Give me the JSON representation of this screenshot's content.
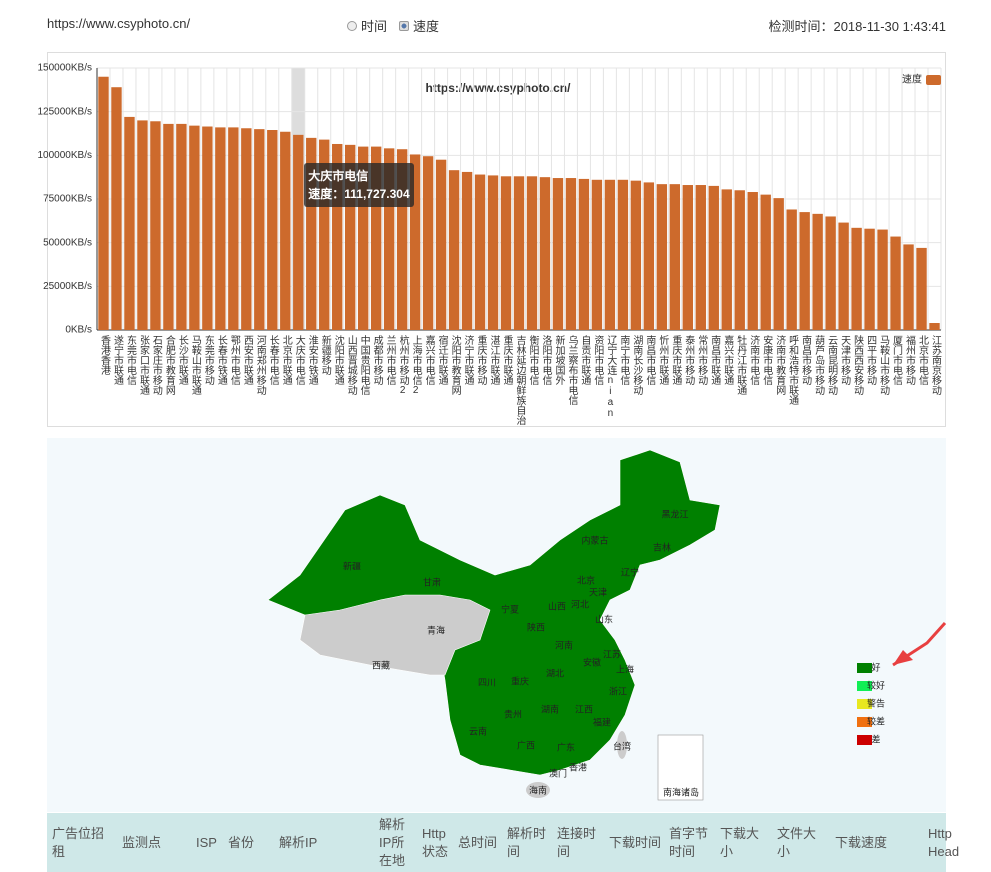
{
  "header": {
    "url": "https://www.csyphoto.cn/",
    "radio_options": [
      "时间",
      "速度"
    ],
    "radio_selected": 1,
    "check_time": "检测时间：2018-11-30 1:43:41"
  },
  "chart_data": {
    "type": "bar",
    "title": "https://www.csyphoto.cn/",
    "categories": [
      "香港香港",
      "遂宁市联通",
      "东莞市电信",
      "张家口市联通",
      "石家庄市移动",
      "合肥市教育网",
      "长沙市联通",
      "马鞍山市联通",
      "东莞市移动",
      "长春市铁通",
      "鄂州市电信",
      "西安市联通",
      "河南郑州移动",
      "长春市电信",
      "北京市联通",
      "大庆市电信",
      "淮安市铁通",
      "新疆移动",
      "沈阳市联通",
      "山西晋城移动",
      "中国贵阳电信",
      "成都市移动",
      "兰州市电信",
      "杭州市移动2",
      "上海市电信2",
      "嘉兴市电信",
      "宿迁市联通",
      "沈阳市教育网",
      "济宁市联通",
      "重庆市移动",
      "湛江市联通",
      "重庆市联通",
      "吉林延边朝鲜族自治",
      "衡阳市电信",
      "洛阳市电信",
      "新加坡国外",
      "乌兰察布市电信",
      "自贡市联通",
      "资阳市电信",
      "辽宁大连nian",
      "南宁市电信",
      "湖南长沙移动",
      "南昌市电信",
      "忻州市联通",
      "重庆市联通",
      "泰州市移动",
      "常州市移动",
      "南昌市联通",
      "嘉兴市联通",
      "牡丹江市联通",
      "济南市电信",
      "安康市电信",
      "济南市教育网",
      "呼和浩特市联通",
      "南昌市移动",
      "葫芦岛市移动",
      "云南昆明移动",
      "天津市移动",
      "陕西西安移动",
      "四平市移动",
      "马鞍山市移动",
      "厦门市电信",
      "福州市移动",
      "北京市电信",
      "江苏南京移动"
    ],
    "series": [
      {
        "name": "速度",
        "color": "#cd6a2c",
        "values": [
          145000,
          139000,
          122000,
          120000,
          119500,
          118000,
          118000,
          117000,
          116500,
          116000,
          116000,
          115500,
          115000,
          114500,
          113500,
          111727.304,
          110000,
          109000,
          106500,
          106000,
          105000,
          105000,
          104000,
          103500,
          100500,
          99500,
          97500,
          91500,
          90500,
          89000,
          88500,
          88000,
          88000,
          88000,
          87500,
          87000,
          87000,
          86500,
          86000,
          86000,
          86000,
          85500,
          84500,
          83500,
          83500,
          83000,
          83000,
          82500,
          80500,
          80000,
          79000,
          77500,
          75500,
          69000,
          67500,
          66500,
          65000,
          61500,
          58500,
          58000,
          57500,
          53500,
          49000,
          47000,
          4000
        ]
      }
    ],
    "ylim": [
      0,
      150000
    ],
    "yticks": [
      {
        "value": 0,
        "label": "0KB/s"
      },
      {
        "value": 25000,
        "label": "25000KB/s"
      },
      {
        "value": 50000,
        "label": "50000KB/s"
      },
      {
        "value": 75000,
        "label": "75000KB/s"
      },
      {
        "value": 100000,
        "label": "100000KB/s"
      },
      {
        "value": 125000,
        "label": "125000KB/s"
      },
      {
        "value": 150000,
        "label": "150000KB/s"
      }
    ],
    "grid": true,
    "legend": "top-right",
    "tooltip": {
      "index": 15,
      "title": "大庆市电信",
      "text": "速度：111,727.304"
    }
  },
  "map": {
    "provinces": [
      {
        "name": "黑龙江",
        "color": "#008000"
      },
      {
        "name": "吉林",
        "color": "#008000"
      },
      {
        "name": "辽宁",
        "color": "#008000"
      },
      {
        "name": "内蒙古",
        "color": "#008000"
      },
      {
        "name": "新疆",
        "color": "#008000"
      },
      {
        "name": "甘肃",
        "color": "#008000"
      },
      {
        "name": "青海",
        "color": "#cccccc"
      },
      {
        "name": "西藏",
        "color": "#cccccc"
      },
      {
        "name": "宁夏",
        "color": "#008000"
      },
      {
        "name": "陕西",
        "color": "#008000"
      },
      {
        "name": "山西",
        "color": "#008000"
      },
      {
        "name": "河北",
        "color": "#008000"
      },
      {
        "name": "北京",
        "color": "#008000"
      },
      {
        "name": "天津",
        "color": "#008000"
      },
      {
        "name": "山东",
        "color": "#008000"
      },
      {
        "name": "河南",
        "color": "#008000"
      },
      {
        "name": "江苏",
        "color": "#008000"
      },
      {
        "name": "安徽",
        "color": "#008000"
      },
      {
        "name": "上海",
        "color": "#008000"
      },
      {
        "name": "浙江",
        "color": "#008000"
      },
      {
        "name": "湖北",
        "color": "#008000"
      },
      {
        "name": "四川",
        "color": "#008000"
      },
      {
        "name": "重庆",
        "color": "#008000"
      },
      {
        "name": "贵州",
        "color": "#008000"
      },
      {
        "name": "湖南",
        "color": "#008000"
      },
      {
        "name": "江西",
        "color": "#008000"
      },
      {
        "name": "福建",
        "color": "#008000"
      },
      {
        "name": "云南",
        "color": "#008000"
      },
      {
        "name": "广西",
        "color": "#008000"
      },
      {
        "name": "广东",
        "color": "#008000"
      },
      {
        "name": "台湾",
        "color": "#cccccc"
      },
      {
        "name": "香港",
        "color": "#008000"
      },
      {
        "name": "澳门",
        "color": "#008000"
      },
      {
        "name": "海南",
        "color": "#cccccc"
      },
      {
        "name": "南海诸岛",
        "color": "#ffffff"
      }
    ],
    "legend": [
      {
        "label": "好",
        "color": "#008000"
      },
      {
        "label": "较好",
        "color": "#11ee55"
      },
      {
        "label": "警告",
        "color": "#e8e820"
      },
      {
        "label": "较差",
        "color": "#f07010"
      },
      {
        "label": "差",
        "color": "#cc0000"
      }
    ]
  },
  "table": {
    "columns": [
      "广告位招租",
      "监测点",
      "ISP",
      "省份",
      "解析IP",
      "解析IP所在地",
      "Http状态",
      "总时间",
      "解析时间",
      "连接时间",
      "下载时间",
      "首字节时间",
      "下载大小",
      "文件大小",
      "下载速度",
      "Http Head"
    ]
  }
}
